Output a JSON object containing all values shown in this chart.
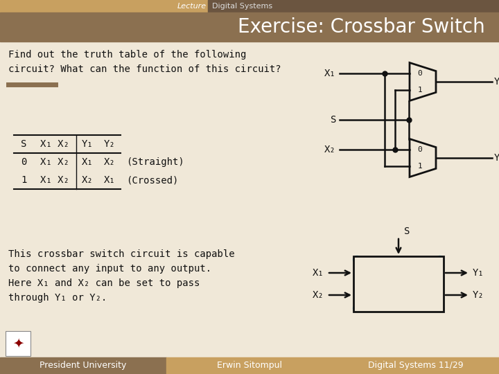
{
  "bg_color": "#f0e8d8",
  "header_bar_color": "#c8a060",
  "header_text_lecture": "Lecture",
  "header_text_subject": "Digital Systems",
  "title_text": "Exercise: Crossbar Switch",
  "title_color": "#ffffff",
  "title_bg_color": "#8b7050",
  "footer_left_color": "#8b7050",
  "footer_mid_color": "#c8a060",
  "footer_right_color": "#c8a060",
  "footer_texts": [
    "President University",
    "Erwin Sitompul",
    "Digital Systems 11/29"
  ],
  "question_text": "Find out the truth table of the following\ncircuit? What can the function of this circuit?",
  "body_text": "This crossbar switch circuit is capable\nto connect any input to any output.\nHere X₁ and X₂ can be set to pass\nthrough Y₁ or Y₂.",
  "separator_color": "#8b7050",
  "cross_color": "#4ab8e0",
  "table_row0": [
    "0",
    "X₁ X₂",
    "X₁",
    "X₂",
    "(Straight)"
  ],
  "table_row1": [
    "1",
    "X₁ X₂",
    "X₂",
    "X₁",
    "(Crossed)"
  ]
}
